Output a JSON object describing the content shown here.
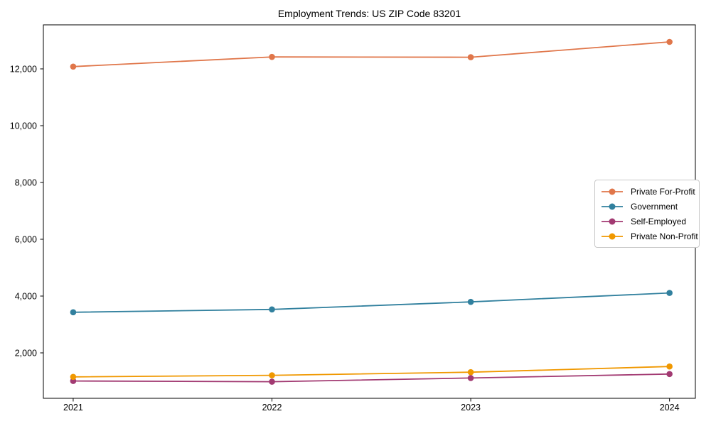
{
  "chart_data": {
    "type": "line",
    "title": "Employment Trends: US ZIP Code 83201",
    "x": [
      2021,
      2022,
      2023,
      2024
    ],
    "x_labels": [
      "2021",
      "2022",
      "2023",
      "2024"
    ],
    "series": [
      {
        "name": "Private For-Profit",
        "color": "#e0764a",
        "values": [
          12080,
          12420,
          12410,
          12950
        ]
      },
      {
        "name": "Government",
        "color": "#31809e",
        "values": [
          3430,
          3530,
          3795,
          4110
        ]
      },
      {
        "name": "Self-Employed",
        "color": "#a23a72",
        "values": [
          1010,
          985,
          1115,
          1255
        ]
      },
      {
        "name": "Private Non-Profit",
        "color": "#f09800",
        "values": [
          1155,
          1210,
          1320,
          1520
        ]
      }
    ],
    "yticks": [
      2000,
      4000,
      6000,
      8000,
      10000,
      12000
    ],
    "ytick_labels": [
      "2,000",
      "4,000",
      "6,000",
      "8,000",
      "10,000",
      "12,000"
    ],
    "ylim": [
      400,
      13550
    ],
    "xlim": [
      2020.85,
      2024.13
    ],
    "grid": false,
    "legend_position": "center-right",
    "axis_color": "#000000",
    "text_color": "#000000",
    "legend_border_color": "#c8c8c8",
    "background": "#ffffff"
  }
}
